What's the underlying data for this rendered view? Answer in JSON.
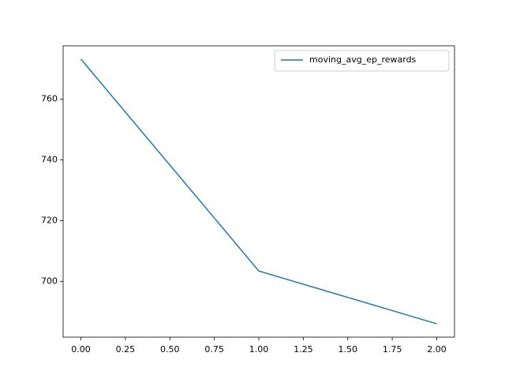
{
  "chart_data": {
    "type": "line",
    "x": [
      0,
      1,
      2
    ],
    "series": [
      {
        "name": "moving_avg_ep_rewards",
        "color": "#1f77b4",
        "values": [
          773.2,
          703.4,
          686.0
        ]
      }
    ],
    "xlim": [
      -0.1,
      2.1
    ],
    "xticks": [
      {
        "value": 0,
        "label": "0.00"
      },
      {
        "value": 0.25,
        "label": "0.25"
      },
      {
        "value": 0.5,
        "label": "0.50"
      },
      {
        "value": 0.75,
        "label": "0.75"
      },
      {
        "value": 1,
        "label": "1.00"
      },
      {
        "value": 1.25,
        "label": "1.25"
      },
      {
        "value": 1.5,
        "label": "1.50"
      },
      {
        "value": 1.75,
        "label": "1.75"
      },
      {
        "value": 2,
        "label": "2.00"
      }
    ],
    "ylim": [
      681.6,
      777.6
    ],
    "yticks": [
      700,
      720,
      740,
      760
    ],
    "legend": "upper right"
  }
}
